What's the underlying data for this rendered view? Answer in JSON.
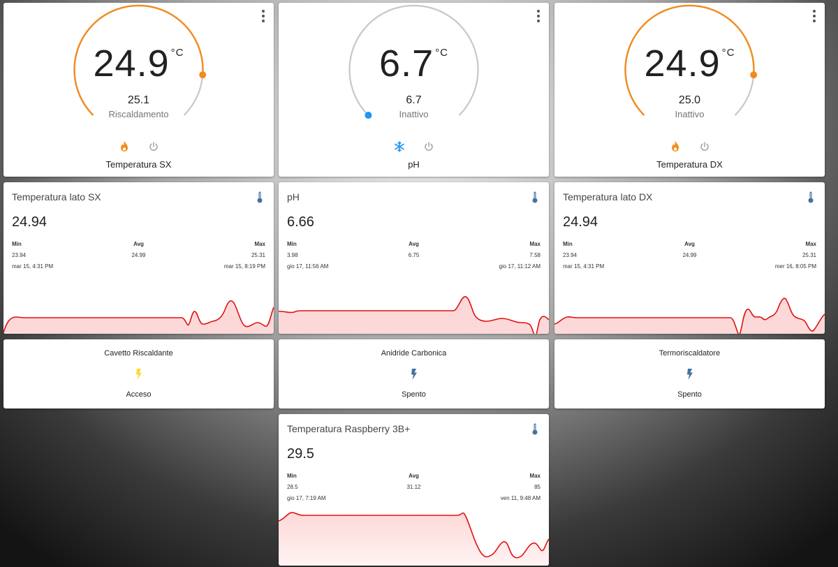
{
  "colors": {
    "heat": "#f28b1e",
    "cool": "#2196f3",
    "arc_idle": "#c8c8c8",
    "graph_line": "#e01010",
    "graph_fill": "#fdd8d8",
    "bolt_on": "#fdd835",
    "bolt_off": "#44739e",
    "thermometer": "#44739e"
  },
  "thermostats": [
    {
      "current": "24.9",
      "unit": "°C",
      "target": "25.1",
      "mode": "Riscaldamento",
      "name": "Temperatura SX",
      "mode_icon": "flame-icon",
      "mode_color": "#f28b1e",
      "level": 0.85
    },
    {
      "current": "6.7",
      "unit": "°C",
      "target": "6.7",
      "mode": "Inattivo",
      "name": "pH",
      "mode_icon": "snowflake-icon",
      "mode_color": "#2196f3",
      "level": 0.0
    },
    {
      "current": "24.9",
      "unit": "°C",
      "target": "25.0",
      "mode": "Inattivo",
      "name": "Temperatura DX",
      "mode_icon": "flame-icon",
      "mode_color": "#f28b1e",
      "level": 0.85
    }
  ],
  "sensors": [
    {
      "title": "Temperatura lato SX",
      "value": "24.94",
      "min_label": "Min",
      "avg_label": "Avg",
      "max_label": "Max",
      "min": "23.94",
      "avg": "24.99",
      "max": "25.31",
      "min_time": "mar 15, 4:31 PM",
      "max_time": "mar 15, 8:19 PM"
    },
    {
      "title": "pH",
      "value": "6.66",
      "min_label": "Min",
      "avg_label": "Avg",
      "max_label": "Max",
      "min": "3.98",
      "avg": "6.75",
      "max": "7.58",
      "min_time": "gio 17, 11:56 AM",
      "max_time": "gio 17, 11:12 AM"
    },
    {
      "title": "Temperatura lato DX",
      "value": "24.94",
      "min_label": "Min",
      "avg_label": "Avg",
      "max_label": "Max",
      "min": "23.94",
      "avg": "24.99",
      "max": "25.31",
      "min_time": "mar 15, 4:31 PM",
      "max_time": "mer 16, 8:05 PM"
    },
    {
      "title": "Temperatura Raspberry 3B+",
      "value": "29.5",
      "min_label": "Min",
      "avg_label": "Avg",
      "max_label": "Max",
      "min": "28.5",
      "avg": "31.12",
      "max": "85",
      "min_time": "gio 17, 7:19 AM",
      "max_time": "ven 11, 9:48 AM"
    }
  ],
  "switches": [
    {
      "name": "Cavetto Riscaldante",
      "state": "Acceso",
      "icon": "flash-icon",
      "on": true
    },
    {
      "name": "Anidride Carbonica",
      "state": "Spento",
      "icon": "flash-icon",
      "on": false
    },
    {
      "name": "Termoriscaldatore",
      "state": "Spento",
      "icon": "flash-icon",
      "on": false
    }
  ]
}
